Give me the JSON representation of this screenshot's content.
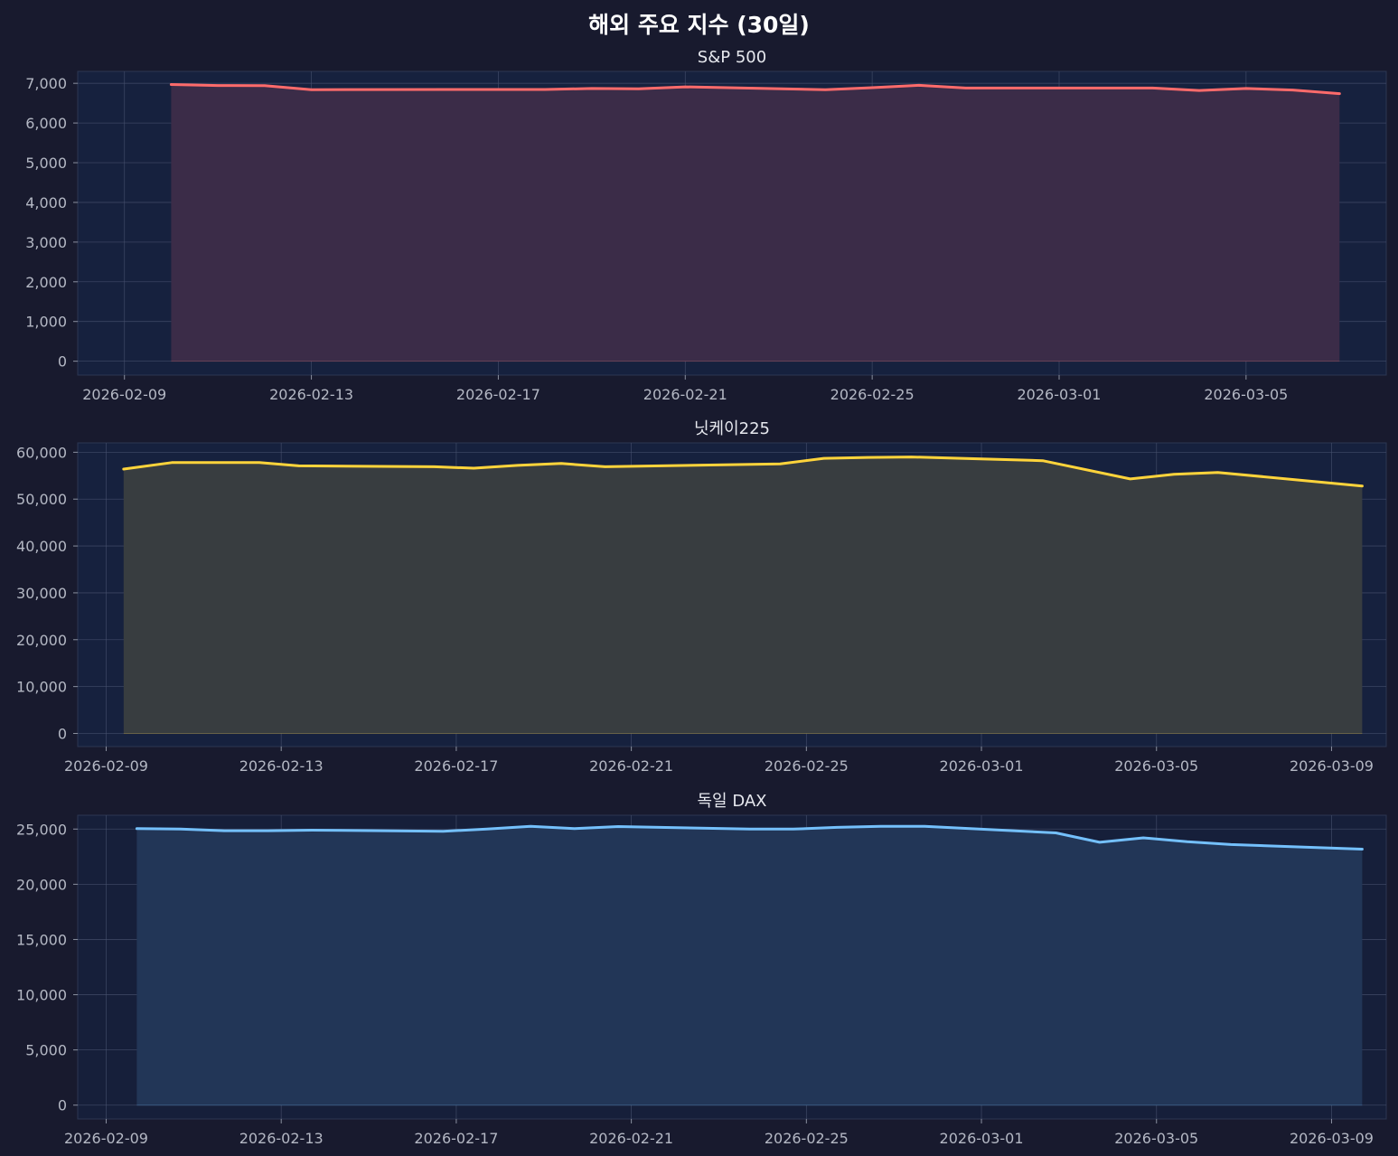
{
  "suptitle": "해외 주요 지수 (30일)",
  "colors": {
    "background": "#181a2e",
    "axes_face": "#16213e",
    "grid": "#4a5470",
    "text": "#b4b8c4"
  },
  "chart_data": [
    {
      "type": "area",
      "title": "S&P 500",
      "color": "#ff6b6b",
      "fill": "#3b2c48",
      "xlim": [
        "2026-02-08",
        "2026-03-08"
      ],
      "ylim": [
        -350,
        7300
      ],
      "xticks": [
        "2026-02-09",
        "2026-02-13",
        "2026-02-17",
        "2026-02-21",
        "2026-02-25",
        "2026-03-01",
        "2026-03-05"
      ],
      "yticks": [
        0,
        1000,
        2000,
        3000,
        4000,
        5000,
        6000,
        7000
      ],
      "ytick_labels": [
        "0",
        "1,000",
        "2,000",
        "3,000",
        "4,000",
        "5,000",
        "6,000",
        "7,000"
      ],
      "grid": true,
      "x": [
        "2026-02-10",
        "2026-02-11",
        "2026-02-12",
        "2026-02-13",
        "2026-02-16",
        "2026-02-17",
        "2026-02-18",
        "2026-02-19",
        "2026-02-20",
        "2026-02-21",
        "2026-02-24",
        "2026-02-25",
        "2026-02-26",
        "2026-02-27",
        "2026-02-28",
        "2026-03-02",
        "2026-03-03",
        "2026-03-04",
        "2026-03-05",
        "2026-03-06",
        "2026-03-07"
      ],
      "y": [
        6970,
        6945,
        6940,
        6840,
        6845,
        6845,
        6845,
        6870,
        6860,
        6910,
        6840,
        6890,
        6950,
        6880,
        6880,
        6880,
        6880,
        6820,
        6870,
        6830,
        6740
      ]
    },
    {
      "type": "area",
      "title": "닛케이225",
      "color": "#ffd43b",
      "fill": "#383d40",
      "xlim": [
        "2026-02-08.35",
        "2026-03-10.25"
      ],
      "ylim": [
        -2800,
        62000
      ],
      "xticks": [
        "2026-02-09",
        "2026-02-13",
        "2026-02-17",
        "2026-02-21",
        "2026-02-25",
        "2026-03-01",
        "2026-03-05",
        "2026-03-09"
      ],
      "yticks": [
        0,
        10000,
        20000,
        30000,
        40000,
        50000,
        60000
      ],
      "ytick_labels": [
        "0",
        "10,000",
        "20,000",
        "30,000",
        "40,000",
        "50,000",
        "60,000"
      ],
      "grid": true,
      "x": [
        "2026-02-09.4",
        "2026-02-10.5",
        "2026-02-12.5",
        "2026-02-13.4",
        "2026-02-16.5",
        "2026-02-17.4",
        "2026-02-18.4",
        "2026-02-19.4",
        "2026-02-20.4",
        "2026-02-24.4",
        "2026-02-25.4",
        "2026-02-26.4",
        "2026-02-27.4",
        "2026-03-02.4",
        "2026-03-04.4",
        "2026-03-05.4",
        "2026-03-06.4",
        "2026-03-09.7"
      ],
      "y": [
        56400,
        57800,
        57800,
        57100,
        56900,
        56600,
        57200,
        57600,
        56900,
        57500,
        58700,
        58900,
        59000,
        58200,
        54300,
        55300,
        55700,
        52800
      ]
    },
    {
      "type": "area",
      "title": "독일 DAX",
      "color": "#74c0fc",
      "fill": "#223657",
      "xlim": [
        "2026-02-08.35",
        "2026-03-10.25"
      ],
      "ylim": [
        -1250,
        26250
      ],
      "xticks": [
        "2026-02-09",
        "2026-02-13",
        "2026-02-17",
        "2026-02-21",
        "2026-02-25",
        "2026-03-01",
        "2026-03-05",
        "2026-03-09"
      ],
      "yticks": [
        0,
        5000,
        10000,
        15000,
        20000,
        25000
      ],
      "ytick_labels": [
        "0",
        "5,000",
        "10,000",
        "15,000",
        "20,000",
        "25,000"
      ],
      "grid": true,
      "x": [
        "2026-02-09.7",
        "2026-02-10.7",
        "2026-02-11.7",
        "2026-02-12.7",
        "2026-02-13.7",
        "2026-02-16.7",
        "2026-02-17.7",
        "2026-02-18.7",
        "2026-02-19.7",
        "2026-02-20.7",
        "2026-02-23.7",
        "2026-02-24.7",
        "2026-02-25.7",
        "2026-02-26.7",
        "2026-02-27.7",
        "2026-03-02.7",
        "2026-03-03.7",
        "2026-03-04.7",
        "2026-03-05.7",
        "2026-03-06.7",
        "2026-03-09.7"
      ],
      "y": [
        25040,
        25000,
        24850,
        24850,
        24900,
        24800,
        25000,
        25250,
        25040,
        25230,
        25000,
        25000,
        25150,
        25250,
        25250,
        24650,
        23800,
        24200,
        23850,
        23600,
        23180
      ]
    }
  ]
}
